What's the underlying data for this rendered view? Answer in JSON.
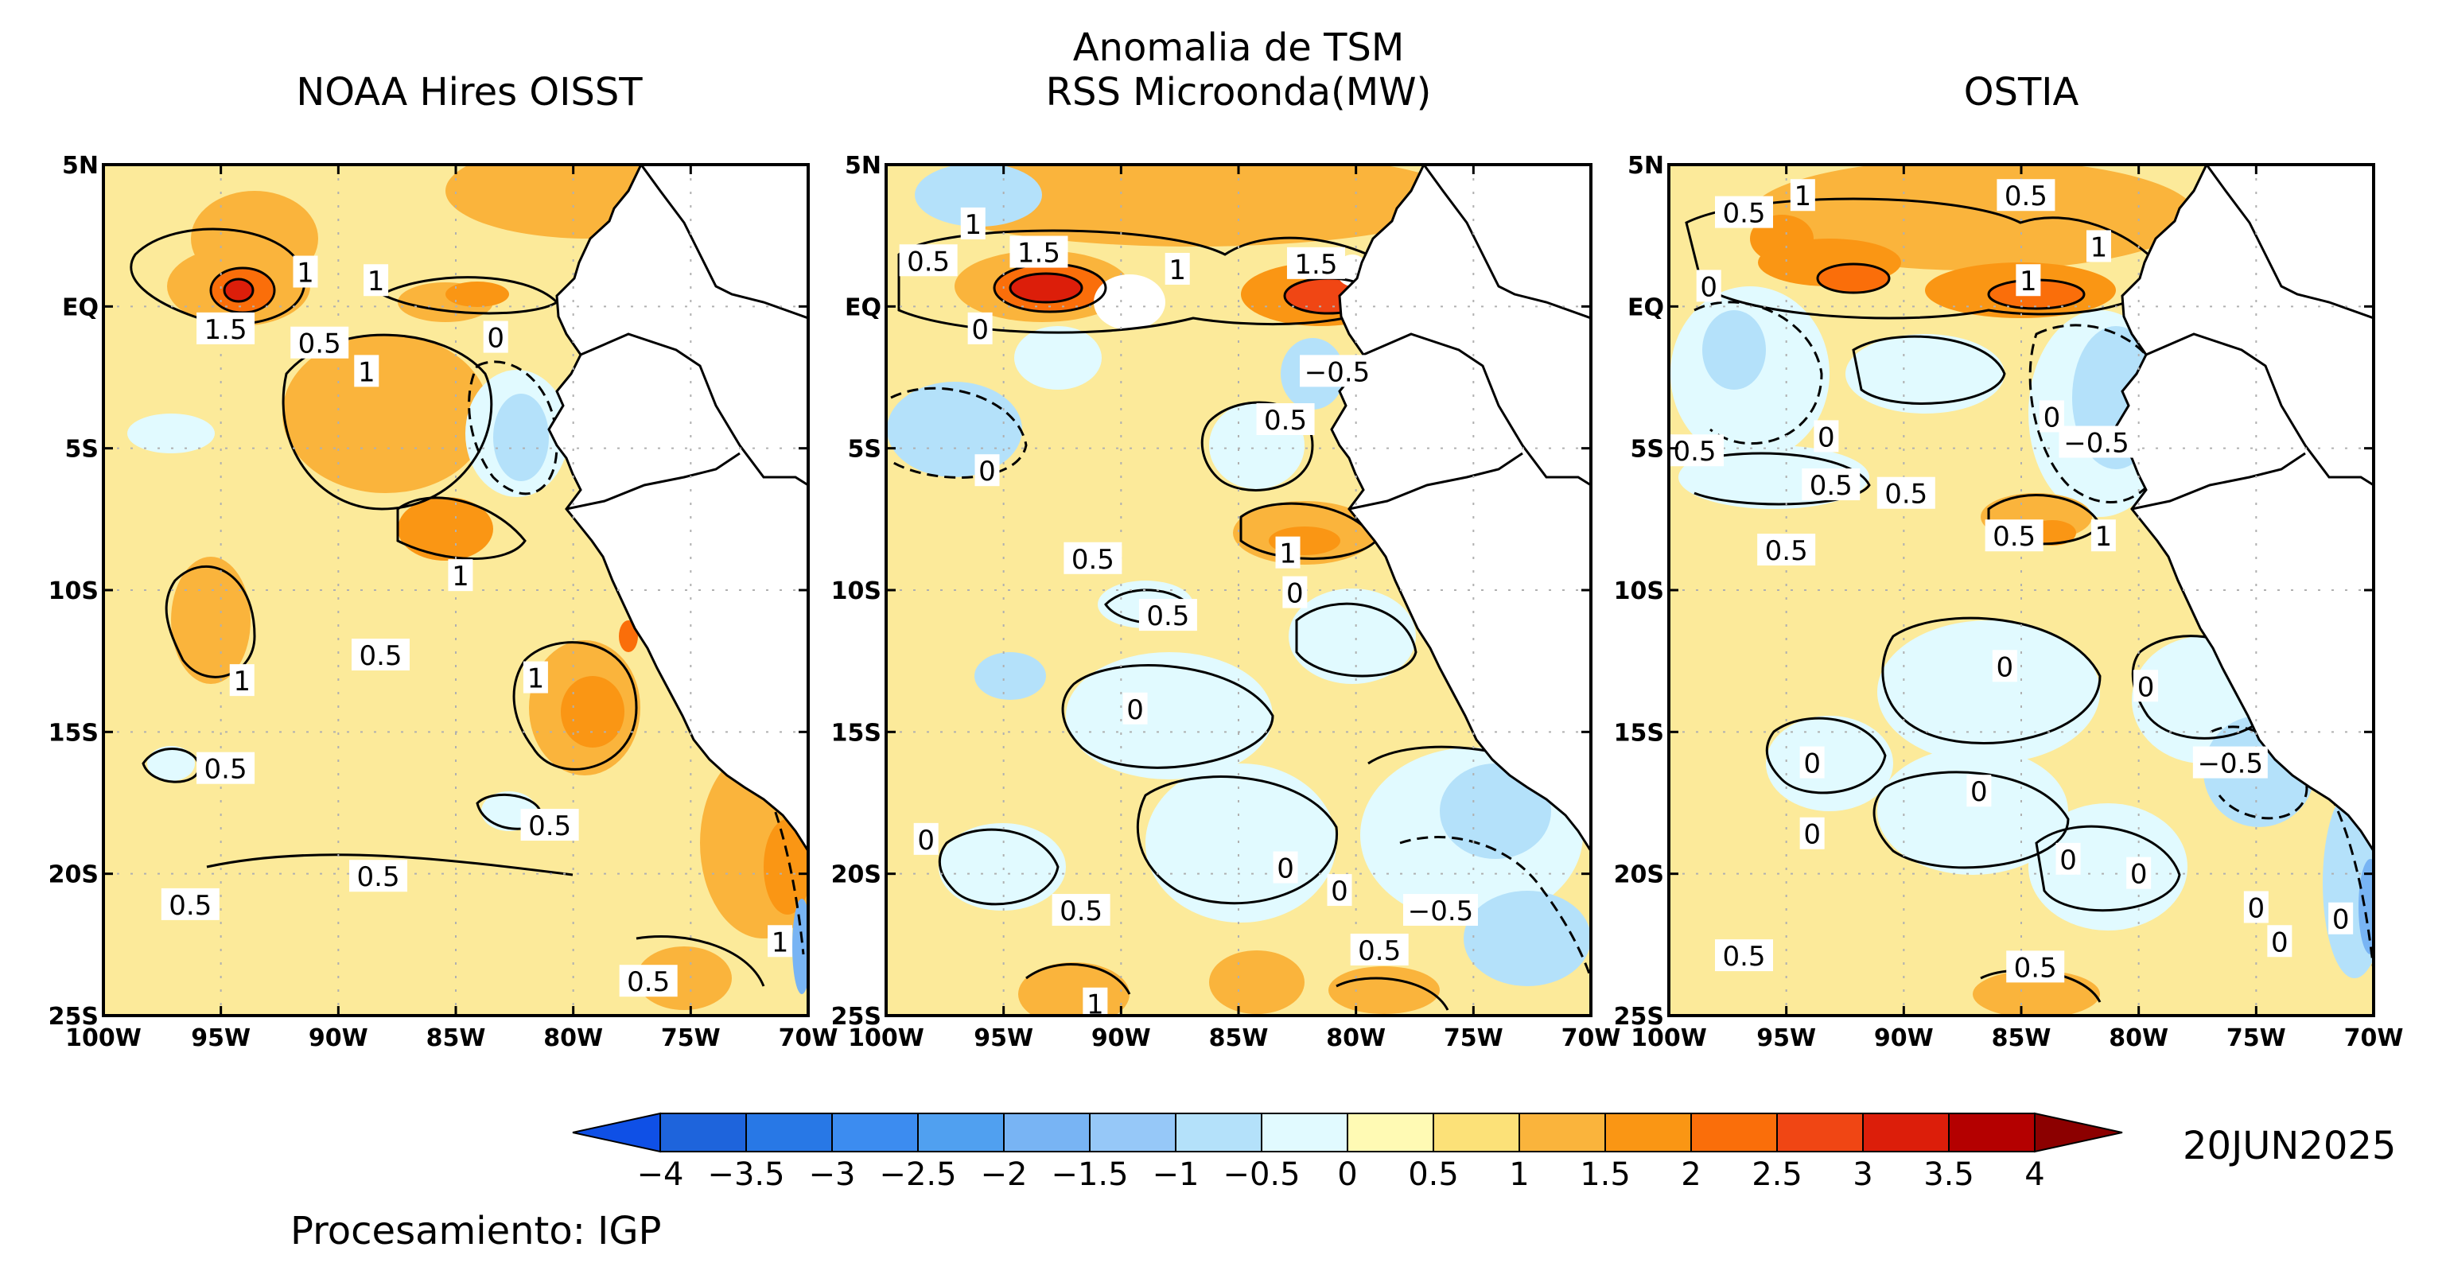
{
  "main_title": {
    "line1": "Anomalia de TSM",
    "line2": "RSS Microonda(MW)"
  },
  "panels": [
    {
      "title": "NOAA Hires OISST",
      "contour_labels": [
        {
          "text": "1",
          "lon": -91.4,
          "lat": 1.2
        },
        {
          "text": "1",
          "lon": -88.4,
          "lat": 0.9
        },
        {
          "text": "1.5",
          "lon": -94.8,
          "lat": -0.8
        },
        {
          "text": "0.5",
          "lon": -90.8,
          "lat": -1.3
        },
        {
          "text": "0",
          "lon": -83.3,
          "lat": -1.1
        },
        {
          "text": "1",
          "lon": -88.8,
          "lat": -2.3
        },
        {
          "text": "1",
          "lon": -84.8,
          "lat": -9.5
        },
        {
          "text": "0.5",
          "lon": -88.2,
          "lat": -12.3
        },
        {
          "text": "1",
          "lon": -94.1,
          "lat": -13.2
        },
        {
          "text": "1",
          "lon": -81.6,
          "lat": -13.1
        },
        {
          "text": "0.5",
          "lon": -94.8,
          "lat": -16.3
        },
        {
          "text": "0.5",
          "lon": -81.0,
          "lat": -18.3
        },
        {
          "text": "0.5",
          "lon": -88.3,
          "lat": -20.1
        },
        {
          "text": "0.5",
          "lon": -96.3,
          "lat": -21.1
        },
        {
          "text": "0.5",
          "lon": -76.8,
          "lat": -23.8
        },
        {
          "text": "1",
          "lon": -71.2,
          "lat": -22.4
        }
      ]
    },
    {
      "title": "",
      "contour_labels": [
        {
          "text": "1",
          "lon": -96.3,
          "lat": 2.9
        },
        {
          "text": "0.5",
          "lon": -98.2,
          "lat": 1.6
        },
        {
          "text": "1.5",
          "lon": -93.5,
          "lat": 1.9
        },
        {
          "text": "1",
          "lon": -87.6,
          "lat": 1.3
        },
        {
          "text": "1.5",
          "lon": -81.7,
          "lat": 1.5
        },
        {
          "text": "0",
          "lon": -96.0,
          "lat": -0.8
        },
        {
          "text": "-0.5",
          "lon": -80.8,
          "lat": -2.3
        },
        {
          "text": "0.5",
          "lon": -83.0,
          "lat": -4.0
        },
        {
          "text": "0",
          "lon": -95.7,
          "lat": -5.8
        },
        {
          "text": "0.5",
          "lon": -91.2,
          "lat": -8.9
        },
        {
          "text": "1",
          "lon": -82.9,
          "lat": -8.7
        },
        {
          "text": "0",
          "lon": -82.6,
          "lat": -10.1
        },
        {
          "text": "0.5",
          "lon": -88.0,
          "lat": -10.9
        },
        {
          "text": "0",
          "lon": -89.4,
          "lat": -14.2
        },
        {
          "text": "0",
          "lon": -98.3,
          "lat": -18.8
        },
        {
          "text": "0",
          "lon": -83.0,
          "lat": -19.8
        },
        {
          "text": "0",
          "lon": -80.7,
          "lat": -20.6
        },
        {
          "text": "-0.5",
          "lon": -76.4,
          "lat": -21.3
        },
        {
          "text": "0.5",
          "lon": -91.7,
          "lat": -21.3
        },
        {
          "text": "0.5",
          "lon": -79.0,
          "lat": -22.7
        },
        {
          "text": "1",
          "lon": -91.1,
          "lat": -24.6
        }
      ]
    },
    {
      "title": "OSTIA",
      "contour_labels": [
        {
          "text": "0.5",
          "lon": -96.8,
          "lat": 3.3
        },
        {
          "text": "1",
          "lon": -94.3,
          "lat": 3.9
        },
        {
          "text": "0.5",
          "lon": -84.8,
          "lat": 3.9
        },
        {
          "text": "1",
          "lon": -81.7,
          "lat": 2.1
        },
        {
          "text": "0",
          "lon": -98.3,
          "lat": 0.7
        },
        {
          "text": "1",
          "lon": -84.7,
          "lat": 0.9
        },
        {
          "text": "0",
          "lon": -83.7,
          "lat": -3.9
        },
        {
          "text": "-0.5",
          "lon": -81.8,
          "lat": -4.8
        },
        {
          "text": "0.5",
          "lon": -98.9,
          "lat": -5.1
        },
        {
          "text": "0",
          "lon": -93.3,
          "lat": -4.6
        },
        {
          "text": "0.5",
          "lon": -93.1,
          "lat": -6.3
        },
        {
          "text": "0.5",
          "lon": -89.9,
          "lat": -6.6
        },
        {
          "text": "0.5",
          "lon": -95.0,
          "lat": -8.6
        },
        {
          "text": "0.5",
          "lon": -85.3,
          "lat": -8.1
        },
        {
          "text": "1",
          "lon": -81.5,
          "lat": -8.1
        },
        {
          "text": "0",
          "lon": -85.7,
          "lat": -12.7
        },
        {
          "text": "0",
          "lon": -79.7,
          "lat": -13.4
        },
        {
          "text": "-0.5",
          "lon": -76.1,
          "lat": -16.1
        },
        {
          "text": "0",
          "lon": -93.9,
          "lat": -16.1
        },
        {
          "text": "0",
          "lon": -86.8,
          "lat": -17.1
        },
        {
          "text": "0",
          "lon": -93.9,
          "lat": -18.6
        },
        {
          "text": "0",
          "lon": -83.0,
          "lat": -19.5
        },
        {
          "text": "0",
          "lon": -80.0,
          "lat": -20.0
        },
        {
          "text": "0",
          "lon": -75.0,
          "lat": -21.2
        },
        {
          "text": "0",
          "lon": -71.4,
          "lat": -21.6
        },
        {
          "text": "0",
          "lon": -74.0,
          "lat": -22.4
        },
        {
          "text": "0.5",
          "lon": -96.8,
          "lat": -22.9
        },
        {
          "text": "0.5",
          "lon": -84.4,
          "lat": -23.3
        }
      ]
    }
  ],
  "axes": {
    "lat_ticks": [
      {
        "value": 5,
        "label": "5N"
      },
      {
        "value": 0,
        "label": "EQ"
      },
      {
        "value": -5,
        "label": "5S"
      },
      {
        "value": -10,
        "label": "10S"
      },
      {
        "value": -15,
        "label": "15S"
      },
      {
        "value": -20,
        "label": "20S"
      },
      {
        "value": -25,
        "label": "25S"
      }
    ],
    "lon_ticks": [
      {
        "value": -100,
        "label": "100W"
      },
      {
        "value": -95,
        "label": "95W"
      },
      {
        "value": -90,
        "label": "90W"
      },
      {
        "value": -85,
        "label": "85W"
      },
      {
        "value": -80,
        "label": "80W"
      },
      {
        "value": -75,
        "label": "75W"
      },
      {
        "value": -70,
        "label": "70W"
      }
    ],
    "lon_range": [
      -100,
      -70
    ],
    "lat_range": [
      -25,
      5
    ],
    "grid": "dotted"
  },
  "colorbar": {
    "levels": [
      -4,
      -3.5,
      -3,
      -2.5,
      -2,
      -1.5,
      -1,
      -0.5,
      0,
      0.5,
      1,
      1.5,
      2,
      2.5,
      3,
      3.5,
      4
    ],
    "labels": [
      "-4",
      "-3.5",
      "-3",
      "-2.5",
      "-2",
      "-1.5",
      "-1",
      "-0.5",
      "0",
      "0.5",
      "1",
      "1.5",
      "2",
      "2.5",
      "3",
      "3.5",
      "4"
    ],
    "colors": [
      "#1e64dc",
      "#2878e6",
      "#3c8cf0",
      "#50a0f0",
      "#78b4f4",
      "#96c8f8",
      "#b4e1fa",
      "#e1faff",
      "#fffab4",
      "#fce178",
      "#fab43c",
      "#fa9614",
      "#fa6e0a",
      "#f04614",
      "#dc1e0a",
      "#b40000"
    ],
    "under_color": "#0f50e6",
    "over_color": "#8c0000"
  },
  "date": "20JUN2025",
  "credit": "Procesamiento: IGP"
}
